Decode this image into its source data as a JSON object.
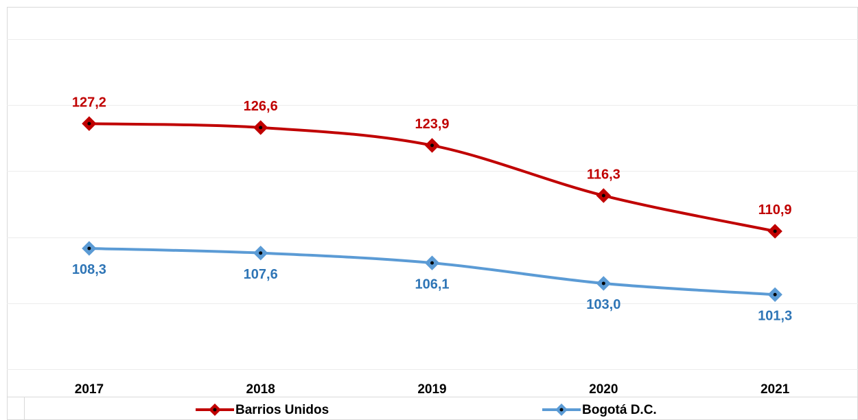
{
  "chart_data": {
    "type": "line",
    "categories": [
      "2017",
      "2018",
      "2019",
      "2020",
      "2021"
    ],
    "series": [
      {
        "name": "Barrios Unidos",
        "color": "#c00000",
        "values": [
          127.2,
          126.6,
          123.9,
          116.3,
          110.9
        ],
        "value_labels": [
          "127,2",
          "126,6",
          "123,9",
          "116,3",
          "110,9"
        ]
      },
      {
        "name": "Bogotá D.C.",
        "color": "#5b9bd5",
        "values": [
          108.3,
          107.6,
          106.1,
          103.0,
          101.3
        ],
        "value_labels": [
          "108,3",
          "107,6",
          "106,1",
          "103,0",
          "101,3"
        ]
      }
    ],
    "ylim": [
      90,
      140
    ],
    "yticks": [
      90,
      100,
      110,
      120,
      130,
      140
    ],
    "grid": true,
    "legend": "bottom"
  }
}
